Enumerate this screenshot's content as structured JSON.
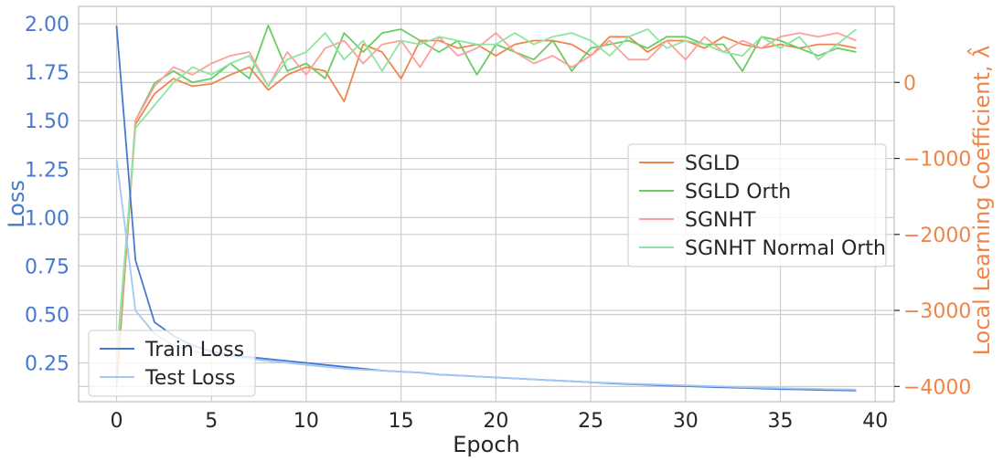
{
  "chart_data": {
    "type": "line",
    "xlabel": "Epoch",
    "ylabel_left": "Loss",
    "ylabel_right": "Local Learning Coefficient, λ̂",
    "xlim": [
      -2,
      41
    ],
    "ylim_left": [
      0.05,
      2.09
    ],
    "ylim_right": [
      -4200,
      1000
    ],
    "xticks": [
      0,
      5,
      10,
      15,
      20,
      25,
      30,
      35,
      40
    ],
    "yticks_left": [
      0.25,
      0.5,
      0.75,
      1.0,
      1.25,
      1.5,
      1.75,
      2.0
    ],
    "yticks_left_labels": [
      "0.25",
      "0.50",
      "0.75",
      "1.00",
      "1.25",
      "1.50",
      "1.75",
      "2.00"
    ],
    "yticks_right": [
      -4000,
      -3000,
      -2000,
      -1000,
      0
    ],
    "yticks_right_labels": [
      "−4000",
      "−3000",
      "−2000",
      "−1000",
      "0"
    ],
    "grid": true,
    "x": [
      0,
      1,
      2,
      3,
      4,
      5,
      6,
      7,
      8,
      9,
      10,
      11,
      12,
      13,
      14,
      15,
      16,
      17,
      18,
      19,
      20,
      21,
      22,
      23,
      24,
      25,
      26,
      27,
      28,
      29,
      30,
      31,
      32,
      33,
      34,
      35,
      36,
      37,
      38,
      39
    ],
    "loss_series": [
      {
        "name": "Train Loss",
        "color": "#4878d0",
        "values": [
          1.99,
          0.78,
          0.46,
          0.39,
          0.34,
          0.31,
          0.29,
          0.28,
          0.27,
          0.26,
          0.25,
          0.24,
          0.23,
          0.22,
          0.21,
          0.205,
          0.2,
          0.19,
          0.185,
          0.18,
          0.175,
          0.17,
          0.165,
          0.16,
          0.155,
          0.15,
          0.145,
          0.14,
          0.137,
          0.133,
          0.13,
          0.127,
          0.124,
          0.121,
          0.118,
          0.115,
          0.113,
          0.111,
          0.109,
          0.107
        ]
      },
      {
        "name": "Test Loss",
        "color": "#a1c9f4",
        "values": [
          1.3,
          0.52,
          0.4,
          0.34,
          0.31,
          0.29,
          0.28,
          0.27,
          0.26,
          0.25,
          0.24,
          0.23,
          0.22,
          0.215,
          0.21,
          0.205,
          0.2,
          0.19,
          0.185,
          0.18,
          0.175,
          0.17,
          0.165,
          0.16,
          0.155,
          0.15,
          0.147,
          0.143,
          0.14,
          0.137,
          0.134,
          0.131,
          0.128,
          0.125,
          0.122,
          0.12,
          0.118,
          0.116,
          0.114,
          0.112
        ]
      }
    ],
    "llc_series": [
      {
        "name": "SGLD",
        "color": "#ee854a",
        "values": [
          -4000,
          -550,
          -150,
          50,
          -50,
          -20,
          100,
          200,
          -100,
          100,
          200,
          150,
          -250,
          500,
          400,
          50,
          550,
          550,
          450,
          500,
          350,
          500,
          550,
          550,
          500,
          350,
          600,
          600,
          400,
          550,
          550,
          450,
          600,
          500,
          450,
          500,
          450,
          500,
          500,
          450
        ]
      },
      {
        "name": "SGLD Orth",
        "color": "#6acc64",
        "values": [
          -3900,
          -500,
          -10,
          150,
          0,
          50,
          250,
          50,
          750,
          150,
          250,
          50,
          650,
          400,
          650,
          700,
          550,
          400,
          550,
          100,
          500,
          400,
          300,
          550,
          150,
          450,
          500,
          550,
          450,
          600,
          600,
          500,
          500,
          150,
          600,
          550,
          450,
          350,
          450,
          400
        ]
      },
      {
        "name": "SGNHT",
        "color": "#ff9f9b",
        "values": [
          -3800,
          -500,
          -50,
          200,
          100,
          250,
          350,
          400,
          -50,
          400,
          100,
          450,
          550,
          250,
          500,
          550,
          200,
          600,
          350,
          450,
          650,
          400,
          250,
          350,
          200,
          350,
          550,
          300,
          300,
          550,
          300,
          600,
          400,
          550,
          450,
          600,
          650,
          600,
          650,
          550
        ]
      },
      {
        "name": "SGNHT Normal Orth",
        "color": "#8de5a1",
        "values": [
          -3600,
          -600,
          -300,
          0,
          200,
          100,
          250,
          350,
          -50,
          300,
          400,
          650,
          300,
          550,
          150,
          550,
          500,
          600,
          550,
          500,
          500,
          650,
          500,
          600,
          650,
          550,
          350,
          600,
          700,
          450,
          550,
          500,
          400,
          350,
          600,
          450,
          600,
          300,
          500,
          700
        ]
      }
    ],
    "legend_left_items": [
      "Train Loss",
      "Test Loss"
    ],
    "legend_right_items": [
      "SGLD",
      "SGLD Orth",
      "SGNHT",
      "SGNHT Normal Orth"
    ],
    "legend_left_placement": "bottom-left",
    "legend_right_placement": "center-right",
    "colors": {
      "left_axis": "#4878d0",
      "right_axis": "#ee854a",
      "grid": "#cccccc",
      "frame": "#cccccc"
    }
  }
}
